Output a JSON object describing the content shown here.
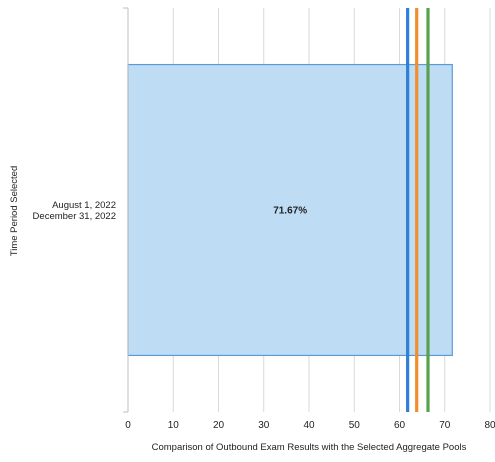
{
  "chart_data": {
    "type": "bar",
    "orientation": "horizontal",
    "categories": [
      [
        "August 1, 2022",
        "December 31, 2022"
      ]
    ],
    "values": [
      71.67
    ],
    "data_labels": [
      "71.67%"
    ],
    "bar_color": "#bfdcf5",
    "bar_edge_color": "#5b9bd5",
    "reference_lines": [
      {
        "value": 61.8,
        "color": "#2f7ed8"
      },
      {
        "value": 63.8,
        "color": "#f28e2b"
      },
      {
        "value": 66.3,
        "color": "#59a14f"
      }
    ],
    "xlabel": "Comparison of Outbound Exam Results with the Selected Aggregate Pools",
    "ylabel": "Time Period Selected",
    "xlim": [
      0,
      80
    ],
    "xticks": [
      "0",
      "10",
      "20",
      "30",
      "40",
      "50",
      "60",
      "70",
      "80"
    ],
    "grid": "vertical"
  }
}
